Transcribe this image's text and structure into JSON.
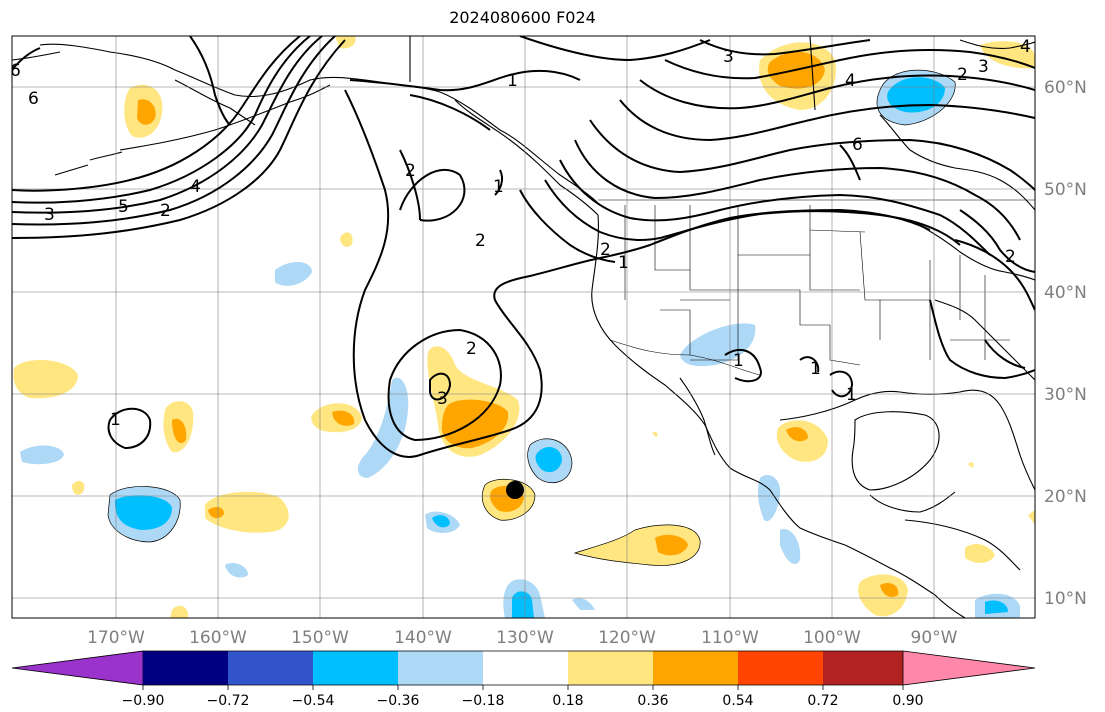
{
  "title": "2024080600 F024",
  "map": {
    "projection": "cylindrical",
    "longitude_labels": [
      "170°W",
      "160°W",
      "150°W",
      "140°W",
      "130°W",
      "120°W",
      "110°W",
      "100°W",
      "90°W"
    ],
    "latitude_labels": [
      "60°N",
      "50°N",
      "40°N",
      "30°N",
      "20°N",
      "10°N"
    ],
    "gridlines": true,
    "marker": "black-dot",
    "contour_labels": [
      "6",
      "6",
      "3",
      "5",
      "2",
      "4",
      "2",
      "1",
      "2",
      "1",
      "2",
      "1",
      "3",
      "4",
      "2",
      "3",
      "6",
      "2",
      "1",
      "2",
      "3",
      "1",
      "1",
      "1",
      "4"
    ]
  },
  "colorbar": {
    "tick_labels": [
      "−0.90",
      "−0.72",
      "−0.54",
      "−0.36",
      "−0.18",
      "0.18",
      "0.36",
      "0.54",
      "0.72",
      "0.90"
    ],
    "colors": [
      "#9933cc",
      "#000080",
      "#3355cc",
      "#00bfff",
      "#add8f6",
      "#ffffff",
      "#ffe680",
      "#ffa500",
      "#ff4500",
      "#b22222",
      "#ff88aa"
    ]
  }
}
